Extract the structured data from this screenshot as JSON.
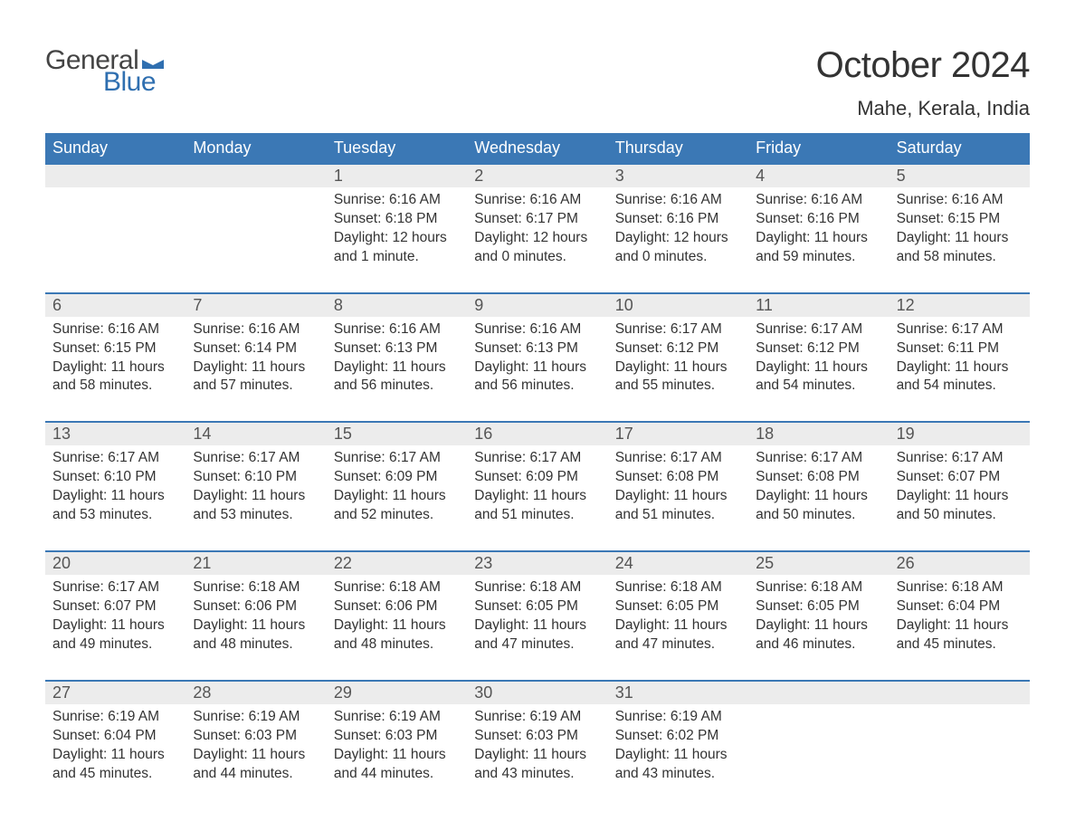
{
  "brand": {
    "general": "General",
    "blue": "Blue",
    "general_color": "#444444",
    "blue_color": "#2f6fb0",
    "flag_color": "#2f6fb0"
  },
  "header": {
    "title": "October 2024",
    "location": "Mahe, Kerala, India",
    "title_fontsize": 40,
    "location_fontsize": 22
  },
  "colors": {
    "weekday_bg": "#3b78b5",
    "weekday_text": "#ffffff",
    "daynum_bg": "#ececec",
    "week_border": "#3b78b5",
    "body_text": "#333333",
    "background": "#ffffff"
  },
  "calendar": {
    "weekdays": [
      "Sunday",
      "Monday",
      "Tuesday",
      "Wednesday",
      "Thursday",
      "Friday",
      "Saturday"
    ],
    "weeks": [
      {
        "days": [
          {
            "num": "",
            "sunrise": "",
            "sunset": "",
            "daylight1": "",
            "daylight2": ""
          },
          {
            "num": "",
            "sunrise": "",
            "sunset": "",
            "daylight1": "",
            "daylight2": ""
          },
          {
            "num": "1",
            "sunrise": "Sunrise: 6:16 AM",
            "sunset": "Sunset: 6:18 PM",
            "daylight1": "Daylight: 12 hours",
            "daylight2": "and 1 minute."
          },
          {
            "num": "2",
            "sunrise": "Sunrise: 6:16 AM",
            "sunset": "Sunset: 6:17 PM",
            "daylight1": "Daylight: 12 hours",
            "daylight2": "and 0 minutes."
          },
          {
            "num": "3",
            "sunrise": "Sunrise: 6:16 AM",
            "sunset": "Sunset: 6:16 PM",
            "daylight1": "Daylight: 12 hours",
            "daylight2": "and 0 minutes."
          },
          {
            "num": "4",
            "sunrise": "Sunrise: 6:16 AM",
            "sunset": "Sunset: 6:16 PM",
            "daylight1": "Daylight: 11 hours",
            "daylight2": "and 59 minutes."
          },
          {
            "num": "5",
            "sunrise": "Sunrise: 6:16 AM",
            "sunset": "Sunset: 6:15 PM",
            "daylight1": "Daylight: 11 hours",
            "daylight2": "and 58 minutes."
          }
        ]
      },
      {
        "days": [
          {
            "num": "6",
            "sunrise": "Sunrise: 6:16 AM",
            "sunset": "Sunset: 6:15 PM",
            "daylight1": "Daylight: 11 hours",
            "daylight2": "and 58 minutes."
          },
          {
            "num": "7",
            "sunrise": "Sunrise: 6:16 AM",
            "sunset": "Sunset: 6:14 PM",
            "daylight1": "Daylight: 11 hours",
            "daylight2": "and 57 minutes."
          },
          {
            "num": "8",
            "sunrise": "Sunrise: 6:16 AM",
            "sunset": "Sunset: 6:13 PM",
            "daylight1": "Daylight: 11 hours",
            "daylight2": "and 56 minutes."
          },
          {
            "num": "9",
            "sunrise": "Sunrise: 6:16 AM",
            "sunset": "Sunset: 6:13 PM",
            "daylight1": "Daylight: 11 hours",
            "daylight2": "and 56 minutes."
          },
          {
            "num": "10",
            "sunrise": "Sunrise: 6:17 AM",
            "sunset": "Sunset: 6:12 PM",
            "daylight1": "Daylight: 11 hours",
            "daylight2": "and 55 minutes."
          },
          {
            "num": "11",
            "sunrise": "Sunrise: 6:17 AM",
            "sunset": "Sunset: 6:12 PM",
            "daylight1": "Daylight: 11 hours",
            "daylight2": "and 54 minutes."
          },
          {
            "num": "12",
            "sunrise": "Sunrise: 6:17 AM",
            "sunset": "Sunset: 6:11 PM",
            "daylight1": "Daylight: 11 hours",
            "daylight2": "and 54 minutes."
          }
        ]
      },
      {
        "days": [
          {
            "num": "13",
            "sunrise": "Sunrise: 6:17 AM",
            "sunset": "Sunset: 6:10 PM",
            "daylight1": "Daylight: 11 hours",
            "daylight2": "and 53 minutes."
          },
          {
            "num": "14",
            "sunrise": "Sunrise: 6:17 AM",
            "sunset": "Sunset: 6:10 PM",
            "daylight1": "Daylight: 11 hours",
            "daylight2": "and 53 minutes."
          },
          {
            "num": "15",
            "sunrise": "Sunrise: 6:17 AM",
            "sunset": "Sunset: 6:09 PM",
            "daylight1": "Daylight: 11 hours",
            "daylight2": "and 52 minutes."
          },
          {
            "num": "16",
            "sunrise": "Sunrise: 6:17 AM",
            "sunset": "Sunset: 6:09 PM",
            "daylight1": "Daylight: 11 hours",
            "daylight2": "and 51 minutes."
          },
          {
            "num": "17",
            "sunrise": "Sunrise: 6:17 AM",
            "sunset": "Sunset: 6:08 PM",
            "daylight1": "Daylight: 11 hours",
            "daylight2": "and 51 minutes."
          },
          {
            "num": "18",
            "sunrise": "Sunrise: 6:17 AM",
            "sunset": "Sunset: 6:08 PM",
            "daylight1": "Daylight: 11 hours",
            "daylight2": "and 50 minutes."
          },
          {
            "num": "19",
            "sunrise": "Sunrise: 6:17 AM",
            "sunset": "Sunset: 6:07 PM",
            "daylight1": "Daylight: 11 hours",
            "daylight2": "and 50 minutes."
          }
        ]
      },
      {
        "days": [
          {
            "num": "20",
            "sunrise": "Sunrise: 6:17 AM",
            "sunset": "Sunset: 6:07 PM",
            "daylight1": "Daylight: 11 hours",
            "daylight2": "and 49 minutes."
          },
          {
            "num": "21",
            "sunrise": "Sunrise: 6:18 AM",
            "sunset": "Sunset: 6:06 PM",
            "daylight1": "Daylight: 11 hours",
            "daylight2": "and 48 minutes."
          },
          {
            "num": "22",
            "sunrise": "Sunrise: 6:18 AM",
            "sunset": "Sunset: 6:06 PM",
            "daylight1": "Daylight: 11 hours",
            "daylight2": "and 48 minutes."
          },
          {
            "num": "23",
            "sunrise": "Sunrise: 6:18 AM",
            "sunset": "Sunset: 6:05 PM",
            "daylight1": "Daylight: 11 hours",
            "daylight2": "and 47 minutes."
          },
          {
            "num": "24",
            "sunrise": "Sunrise: 6:18 AM",
            "sunset": "Sunset: 6:05 PM",
            "daylight1": "Daylight: 11 hours",
            "daylight2": "and 47 minutes."
          },
          {
            "num": "25",
            "sunrise": "Sunrise: 6:18 AM",
            "sunset": "Sunset: 6:05 PM",
            "daylight1": "Daylight: 11 hours",
            "daylight2": "and 46 minutes."
          },
          {
            "num": "26",
            "sunrise": "Sunrise: 6:18 AM",
            "sunset": "Sunset: 6:04 PM",
            "daylight1": "Daylight: 11 hours",
            "daylight2": "and 45 minutes."
          }
        ]
      },
      {
        "days": [
          {
            "num": "27",
            "sunrise": "Sunrise: 6:19 AM",
            "sunset": "Sunset: 6:04 PM",
            "daylight1": "Daylight: 11 hours",
            "daylight2": "and 45 minutes."
          },
          {
            "num": "28",
            "sunrise": "Sunrise: 6:19 AM",
            "sunset": "Sunset: 6:03 PM",
            "daylight1": "Daylight: 11 hours",
            "daylight2": "and 44 minutes."
          },
          {
            "num": "29",
            "sunrise": "Sunrise: 6:19 AM",
            "sunset": "Sunset: 6:03 PM",
            "daylight1": "Daylight: 11 hours",
            "daylight2": "and 44 minutes."
          },
          {
            "num": "30",
            "sunrise": "Sunrise: 6:19 AM",
            "sunset": "Sunset: 6:03 PM",
            "daylight1": "Daylight: 11 hours",
            "daylight2": "and 43 minutes."
          },
          {
            "num": "31",
            "sunrise": "Sunrise: 6:19 AM",
            "sunset": "Sunset: 6:02 PM",
            "daylight1": "Daylight: 11 hours",
            "daylight2": "and 43 minutes."
          },
          {
            "num": "",
            "sunrise": "",
            "sunset": "",
            "daylight1": "",
            "daylight2": ""
          },
          {
            "num": "",
            "sunrise": "",
            "sunset": "",
            "daylight1": "",
            "daylight2": ""
          }
        ]
      }
    ]
  }
}
